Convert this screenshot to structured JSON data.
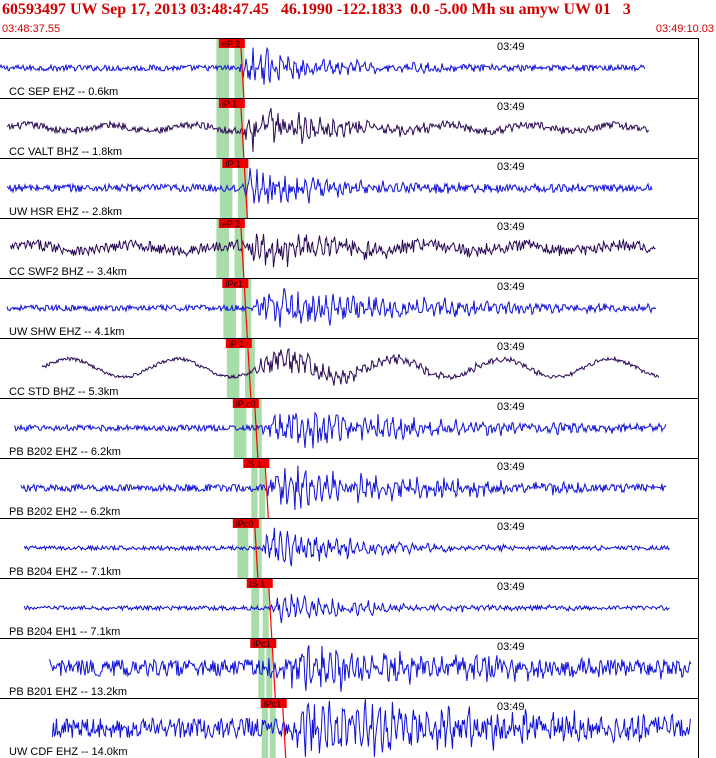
{
  "header": {
    "title": "60593497 UW Sep 17, 2013 03:48:47.45   46.1990 -122.1833  0.0 -5.00 Mh su amyw UW 01   3",
    "start_time": "03:48:37.55",
    "end_time": "03:49:10.03"
  },
  "colors": {
    "title_text": "#d40000",
    "trace_blue": "#1010d8",
    "trace_purple": "#2a0a55",
    "pick_marker": "#ee0000",
    "pick_line": "#ff0000",
    "pick_window": "#a8dca8",
    "panel_border": "#000000"
  },
  "traces": [
    {
      "label": "CC SEP EHZ -- 0.6km",
      "pick": "eP 2",
      "time_label": "03:49",
      "color": "blue",
      "amp": 0.55,
      "noise": 0.1,
      "wave_amp": 0.0,
      "wave_period": 0,
      "arrival": 0.34,
      "pick_pos": 0.325,
      "band": [
        0.31,
        0.35
      ],
      "x_start": 0.0,
      "x_end": 0.925,
      "dur": 0.28
    },
    {
      "label": "CC VALT BHZ -- 1.8km",
      "pick": "iP 1",
      "time_label": "03:49",
      "color": "purple",
      "amp": 0.55,
      "noise": 0.12,
      "wave_amp": 0.1,
      "wave_period": 0.12,
      "arrival": 0.345,
      "pick_pos": 0.325,
      "band": [
        0.31,
        0.35
      ],
      "x_start": 0.01,
      "x_end": 0.93,
      "dur": 0.3
    },
    {
      "label": "UW HSR EHZ -- 2.8km",
      "pick": "iP 1",
      "time_label": "03:49",
      "color": "blue",
      "amp": 0.55,
      "noise": 0.13,
      "wave_amp": 0.0,
      "wave_period": 0,
      "arrival": 0.345,
      "pick_pos": 0.33,
      "band": [
        0.315,
        0.355
      ],
      "x_start": 0.01,
      "x_end": 0.935,
      "dur": 0.3
    },
    {
      "label": "CC SWF2 BHZ -- 3.4km",
      "pick": "eP 2",
      "time_label": "03:49",
      "color": "purple",
      "amp": 0.45,
      "noise": 0.18,
      "wave_amp": 0.1,
      "wave_period": 0.14,
      "arrival": 0.345,
      "pick_pos": 0.325,
      "band": [
        0.31,
        0.35
      ],
      "x_start": 0.015,
      "x_end": 0.94,
      "dur": 0.35
    },
    {
      "label": "UW SHW EHZ -- 4.1km",
      "pick": "iPc1",
      "time_label": "03:49",
      "color": "blue",
      "amp": 0.55,
      "noise": 0.1,
      "wave_amp": 0.0,
      "wave_period": 0,
      "arrival": 0.355,
      "pick_pos": 0.33,
      "band": [
        0.32,
        0.36
      ],
      "x_start": 0.01,
      "x_end": 0.94,
      "dur": 0.55
    },
    {
      "label": "CC STD BHZ -- 5.3km",
      "pick": "iP 1",
      "time_label": "03:49",
      "color": "purple",
      "amp": 0.45,
      "noise": 0.06,
      "wave_amp": 0.3,
      "wave_period": 0.155,
      "arrival": 0.36,
      "pick_pos": 0.335,
      "band": [
        0.325,
        0.365
      ],
      "x_start": 0.06,
      "x_end": 0.945,
      "dur": 0.35
    },
    {
      "label": "PB B202 EHZ -- 6.2km",
      "pick": "iP c0",
      "time_label": "03:49",
      "color": "blue",
      "amp": 0.55,
      "noise": 0.1,
      "wave_amp": 0.0,
      "wave_period": 0,
      "arrival": 0.37,
      "pick_pos": 0.345,
      "band": [
        0.335,
        0.375
      ],
      "x_start": 0.02,
      "x_end": 0.955,
      "dur": 0.55
    },
    {
      "label": "PB B202 EH2 -- 6.2km",
      "pick": "iS 1",
      "time_label": "03:49",
      "color": "blue",
      "amp": 0.55,
      "noise": 0.12,
      "wave_amp": 0.0,
      "wave_period": 0,
      "arrival": 0.375,
      "pick_pos": 0.36,
      "band": [
        0.36,
        0.38
      ],
      "x_start": 0.03,
      "x_end": 0.955,
      "dur": 0.55
    },
    {
      "label": "PB B204 EHZ -- 7.1km",
      "pick": "iPc0",
      "time_label": "03:49",
      "color": "blue",
      "amp": 0.5,
      "noise": 0.07,
      "wave_amp": 0.0,
      "wave_period": 0,
      "arrival": 0.37,
      "pick_pos": 0.345,
      "band": [
        0.34,
        0.375
      ],
      "x_start": 0.035,
      "x_end": 0.96,
      "dur": 0.3
    },
    {
      "label": "PB B204 EH1 -- 7.1km",
      "pick": "iS 1",
      "time_label": "03:49",
      "color": "blue",
      "amp": 0.4,
      "noise": 0.07,
      "wave_amp": 0.0,
      "wave_period": 0,
      "arrival": 0.385,
      "pick_pos": 0.365,
      "band": [
        0.36,
        0.385
      ],
      "x_start": 0.035,
      "x_end": 0.96,
      "dur": 0.3
    },
    {
      "label": "PB B201 EHZ -- 13.2km",
      "pick": "iPc1",
      "time_label": "03:49",
      "color": "blue",
      "amp": 0.55,
      "noise": 0.28,
      "wave_amp": 0.0,
      "wave_period": 0,
      "arrival": 0.38,
      "pick_pos": 0.37,
      "band": [
        0.37,
        0.39
      ],
      "x_start": 0.07,
      "x_end": 0.99,
      "dur": 0.6
    },
    {
      "label": "UW CDF EHZ -- 14.0km",
      "pick": "iPc1",
      "time_label": "03:49",
      "color": "blue",
      "amp": 0.85,
      "noise": 0.33,
      "wave_amp": 0.0,
      "wave_period": 0,
      "arrival": 0.4,
      "pick_pos": 0.385,
      "band": [
        0.375,
        0.395
      ],
      "x_start": 0.075,
      "x_end": 0.99,
      "dur": 0.7
    }
  ]
}
